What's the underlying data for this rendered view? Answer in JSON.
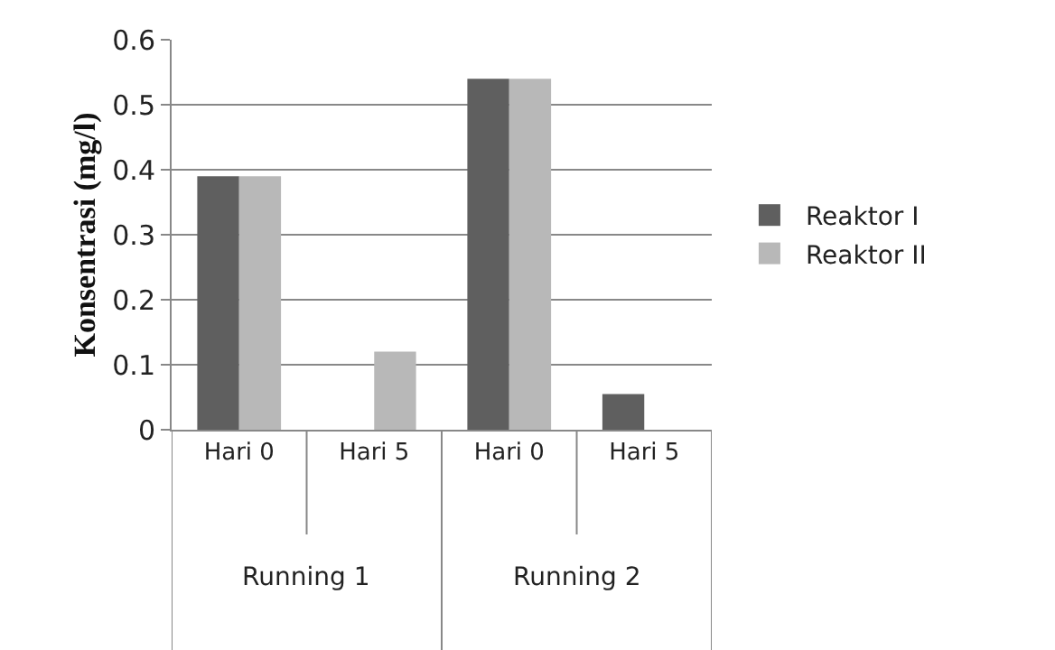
{
  "chart_data": {
    "type": "bar",
    "ylabel": "Konsentrasi (mg/l)",
    "categories": [
      "Hari 0",
      "Hari 5",
      "Hari 0",
      "Hari 5"
    ],
    "series": [
      {
        "name": "Reaktor I",
        "color": "#5f5f5f",
        "values": [
          0.39,
          0,
          0.54,
          0.055
        ]
      },
      {
        "name": "Reaktor II",
        "color": "#b8b8b8",
        "values": [
          0.39,
          0.12,
          0.54,
          0
        ]
      }
    ],
    "annotations": [
      "Running 1",
      "Running 2"
    ],
    "ylim": [
      0,
      0.6
    ],
    "yticks": [
      0,
      0.1,
      0.2,
      0.3,
      0.4,
      0.5,
      0.6
    ],
    "grid": "y",
    "legend": "right"
  }
}
